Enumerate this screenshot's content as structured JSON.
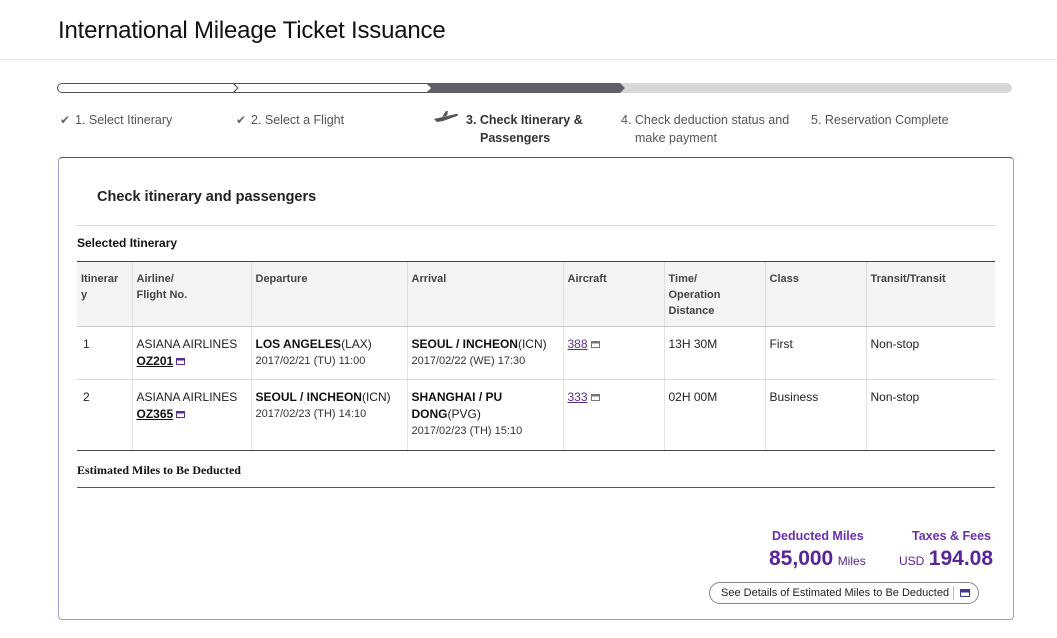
{
  "page": {
    "title": "International Mileage Ticket Issuance"
  },
  "steps": [
    {
      "label_line1": "1. Select Itinerary",
      "label_line2": "",
      "status": "done"
    },
    {
      "label_line1": "2. Select a Flight",
      "label_line2": "",
      "status": "done"
    },
    {
      "label_line1": "3. Check Itinerary &",
      "label_line2": "Passengers",
      "status": "active"
    },
    {
      "label_line1": "4. Check deduction status and",
      "label_line2": "make payment",
      "status": "pending"
    },
    {
      "label_line1": "5. Reservation Complete",
      "label_line2": "",
      "status": "pending"
    }
  ],
  "card": {
    "title": "Check itinerary and passengers",
    "selected_itinerary_title": "Selected Itinerary",
    "table": {
      "headers": {
        "itinerary_1": "Itinerar",
        "itinerary_2": "y",
        "airline_1": "Airline/",
        "airline_2": "Flight No.",
        "departure": "Departure",
        "arrival": "Arrival",
        "aircraft": "Aircraft",
        "time_1": "Time/",
        "time_2": "Operation",
        "time_3": "Distance",
        "class": "Class",
        "transit": "Transit/Transit"
      },
      "rows": [
        {
          "itinerary": "1",
          "airline": "ASIANA AIRLINES",
          "flight_no": "OZ201",
          "dep_city": "LOS ANGELES",
          "dep_code": "(LAX)",
          "dep_date": "2017/02/21 (TU) 11:00",
          "arr_city": "SEOUL / INCHEON",
          "arr_city_2": "",
          "arr_code": "(ICN)",
          "arr_date": "2017/02/22 (WE) 17:30",
          "aircraft": "388",
          "time": "13H 30M",
          "class": "First",
          "transit": "Non-stop"
        },
        {
          "itinerary": "2",
          "airline": "ASIANA AIRLINES",
          "flight_no": "OZ365",
          "dep_city": "SEOUL / INCHEON",
          "dep_code": "(ICN)",
          "dep_date": "2017/02/23 (TH) 14:10",
          "arr_city": "SHANGHAI / PU",
          "arr_city_2": "DONG",
          "arr_code": "(PVG)",
          "arr_date": "2017/02/23 (TH) 15:10",
          "aircraft": "333",
          "time": "02H 00M",
          "class": "Business",
          "transit": "Non-stop"
        }
      ]
    },
    "estimated_miles_title": "Estimated Miles to Be Deducted",
    "deducted_miles": {
      "label": "Deducted Miles",
      "value": "85,000",
      "unit": "Miles"
    },
    "taxes_fees": {
      "label": "Taxes & Fees",
      "currency": "USD",
      "value": "194.08"
    },
    "details_button": "See Details of Estimated Miles to Be Deducted"
  },
  "colors": {
    "accent": "#5a2599",
    "step_done": "#ffffff",
    "step_active": "#5f5f66",
    "step_pending": "#d8d8d8"
  },
  "icons": {
    "done_step": "check-icon",
    "active_step": "airplane-icon",
    "external_link": "external-window-icon"
  }
}
